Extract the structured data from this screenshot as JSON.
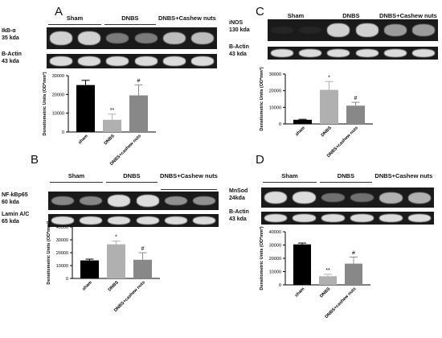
{
  "panels": [
    {
      "letter": "A",
      "groups": [
        "Sham",
        "DNBS",
        "DNBS+Cashew nuts"
      ],
      "blots": [
        {
          "label": "IkB-α\n35 kda",
          "intensity": [
            0.85,
            0.85,
            0.45,
            0.45,
            0.75,
            0.75
          ]
        },
        {
          "label": "B-Actin\n43 kda",
          "intensity": [
            0.9,
            0.9,
            0.9,
            0.9,
            0.9,
            0.9
          ]
        }
      ]
    },
    {
      "letter": "C",
      "groups": [
        "Sham",
        "DNBS",
        "DNBS+Cashew nuts"
      ],
      "blots": [
        {
          "label": "iNOS\n130 kda",
          "intensity": [
            0.05,
            0.05,
            0.85,
            0.85,
            0.6,
            0.6
          ]
        },
        {
          "label": "B-Actin\n43 kda",
          "intensity": [
            0.9,
            0.9,
            0.9,
            0.9,
            0.9,
            0.9
          ]
        }
      ]
    },
    {
      "letter": "B",
      "groups": [
        "Sham",
        "DNBS",
        "DNBS+Cashew nuts"
      ],
      "blots": [
        {
          "label": "NF-kBp65\n60 kda",
          "intensity": [
            0.5,
            0.5,
            0.9,
            0.9,
            0.55,
            0.55
          ]
        },
        {
          "label": "Lamin A/C\n65 kda",
          "intensity": [
            0.9,
            0.9,
            0.9,
            0.9,
            0.9,
            0.9
          ]
        }
      ]
    },
    {
      "letter": "D",
      "groups": [
        "Sham",
        "DNBS",
        "DNBS+Cashew nuts"
      ],
      "blots": [
        {
          "label": "MnSod\n24kda",
          "intensity": [
            0.9,
            0.9,
            0.4,
            0.4,
            0.7,
            0.7
          ]
        },
        {
          "label": "B-Actin\n43 kda",
          "intensity": [
            0.9,
            0.9,
            0.9,
            0.9,
            0.9,
            0.9
          ]
        }
      ]
    }
  ],
  "chart_data": [
    {
      "panel": "A",
      "type": "bar",
      "categories": [
        "sham",
        "DNBS",
        "DNBS+cashew nuts"
      ],
      "values": [
        25000,
        6500,
        19500
      ],
      "errors": [
        2500,
        3000,
        5500
      ],
      "annotations": [
        "",
        "**",
        "#"
      ],
      "colors": [
        "#000000",
        "#b0b0b0",
        "#888888"
      ],
      "ylabel": "Densitometric Units (OD*mm²)",
      "ylim": [
        0,
        30000
      ],
      "yticks": [
        "0",
        "10000",
        "20000",
        "30000"
      ]
    },
    {
      "panel": "C",
      "type": "bar",
      "categories": [
        "sham",
        "DNBS",
        "DNBS+cashew nuts"
      ],
      "values": [
        2500,
        20500,
        11000
      ],
      "errors": [
        300,
        5000,
        2000
      ],
      "annotations": [
        "",
        "*",
        "#"
      ],
      "colors": [
        "#000000",
        "#b0b0b0",
        "#888888"
      ],
      "ylabel": "Densitometric Units (OD*mm²)",
      "ylim": [
        0,
        30000
      ],
      "yticks": [
        "0",
        "10000",
        "20000",
        "30000"
      ]
    },
    {
      "panel": "B",
      "type": "bar",
      "categories": [
        "sham",
        "DNBS",
        "DNBS+cashew nuts"
      ],
      "values": [
        14000,
        26500,
        14500
      ],
      "errors": [
        1000,
        2500,
        5500
      ],
      "annotations": [
        "",
        "*",
        "#"
      ],
      "colors": [
        "#000000",
        "#b0b0b0",
        "#888888"
      ],
      "ylabel": "Densitometric Units (OD*mm²)",
      "ylim": [
        0,
        40000
      ],
      "yticks": [
        "0",
        "10000",
        "20000",
        "30000",
        "40000"
      ]
    },
    {
      "panel": "D",
      "type": "bar",
      "categories": [
        "sham",
        "DNBS",
        "DNBS+cashew nuts"
      ],
      "values": [
        30500,
        6500,
        16000
      ],
      "errors": [
        1000,
        1500,
        5000
      ],
      "annotations": [
        "",
        "**",
        "#"
      ],
      "colors": [
        "#000000",
        "#b0b0b0",
        "#888888"
      ],
      "ylabel": "Densitometric Units (OD*mm²)",
      "ylim": [
        0,
        40000
      ],
      "yticks": [
        "0",
        "10000",
        "20000",
        "30000",
        "40000"
      ]
    }
  ]
}
